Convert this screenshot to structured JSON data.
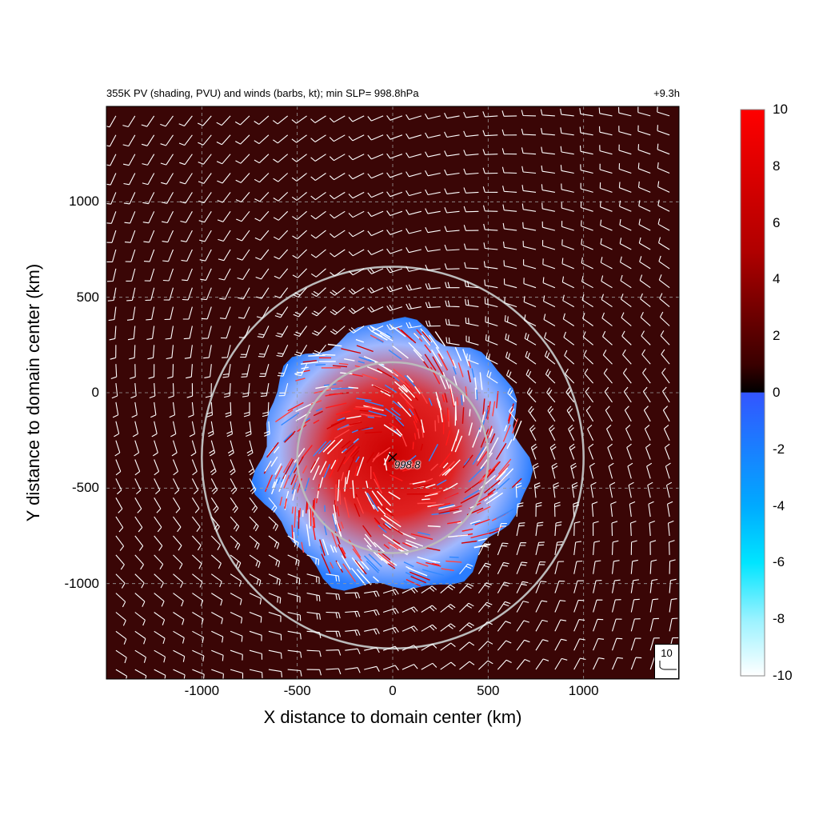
{
  "title": "355K PV (shading, PVU) and winds (barbs, kt); min SLP=  998.8hPa",
  "time": "+9.3h",
  "chart_data": {
    "type": "heatmap",
    "field": "355K PV",
    "units": "PVU",
    "xlabel": "X distance to domain center (km)",
    "ylabel": "Y distance to domain center (km)",
    "xlim": [
      -1500,
      1500
    ],
    "ylim": [
      -1500,
      1500
    ],
    "x_ticks": [
      -1000,
      -500,
      0,
      500,
      1000
    ],
    "y_ticks": [
      1000,
      500,
      0,
      -500,
      -1000
    ],
    "grid": true,
    "colorbar": {
      "range": [
        -10,
        10
      ],
      "ticks": [
        10,
        8,
        6,
        4,
        2,
        0,
        -2,
        -4,
        -6,
        -8,
        -10
      ],
      "colors": {
        "max": "#ff0000",
        "mid_positive": "#3a0000",
        "zero_positive": "#000000",
        "zero_negative": "#3355ff",
        "cyan": "#00e5ff",
        "min": "#ffffff"
      }
    },
    "background_pv": 2.8,
    "storm_center": [
      0,
      -340
    ],
    "min_slp": "998.8",
    "range_rings_km": [
      500,
      1000
    ],
    "core_radius_km": 700,
    "wind_reference": "10"
  }
}
